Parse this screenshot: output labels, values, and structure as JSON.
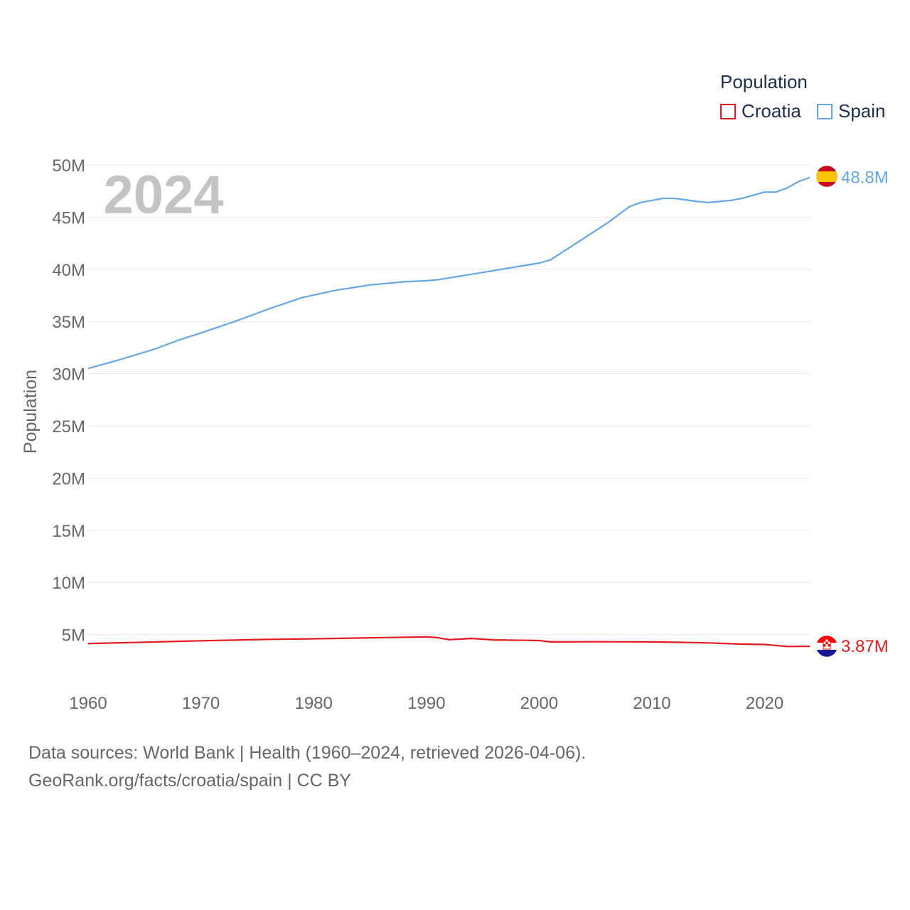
{
  "legend": {
    "title": "Population",
    "items": [
      {
        "name": "Croatia",
        "color": "#e3191c"
      },
      {
        "name": "Spain",
        "color": "#64a6e8"
      }
    ]
  },
  "footer": {
    "line1": "Data sources: World Bank | Health (1960–2024, retrieved 2026-04-06).",
    "line2": "GeoRank.org/facts/croatia/spain | CC BY"
  },
  "chart_data": {
    "type": "line",
    "title": "",
    "year_label": "2024",
    "xlabel": "",
    "ylabel": "Population",
    "xlim": [
      1960,
      2024
    ],
    "ylim": [
      0,
      50000000
    ],
    "x_ticks": [
      1960,
      1970,
      1980,
      1990,
      2000,
      2010,
      2020
    ],
    "x_tick_labels": [
      "1960",
      "1970",
      "1980",
      "1990",
      "2000",
      "2010",
      "2020"
    ],
    "y_ticks": [
      5000000,
      10000000,
      15000000,
      20000000,
      25000000,
      30000000,
      35000000,
      40000000,
      45000000,
      50000000
    ],
    "y_tick_labels": [
      "5M",
      "10M",
      "15M",
      "20M",
      "25M",
      "30M",
      "35M",
      "40M",
      "45M",
      "50M"
    ],
    "grid": true,
    "series": [
      {
        "name": "Spain",
        "color": "#64a6e8",
        "end_label": "48.8M",
        "points": [
          [
            1960,
            30.5
          ],
          [
            1963,
            31.4
          ],
          [
            1966,
            32.4
          ],
          [
            1968,
            33.2
          ],
          [
            1970,
            33.9
          ],
          [
            1973,
            35.0
          ],
          [
            1976,
            36.2
          ],
          [
            1979,
            37.3
          ],
          [
            1982,
            38.0
          ],
          [
            1985,
            38.5
          ],
          [
            1988,
            38.8
          ],
          [
            1990,
            38.9
          ],
          [
            1991,
            39.0
          ],
          [
            1995,
            39.7
          ],
          [
            2000,
            40.6
          ],
          [
            2001,
            40.9
          ],
          [
            2002,
            41.6
          ],
          [
            2004,
            43.0
          ],
          [
            2006,
            44.4
          ],
          [
            2008,
            46.0
          ],
          [
            2009,
            46.4
          ],
          [
            2010,
            46.6
          ],
          [
            2011,
            46.8
          ],
          [
            2012,
            46.8
          ],
          [
            2014,
            46.5
          ],
          [
            2015,
            46.4
          ],
          [
            2016,
            46.5
          ],
          [
            2017,
            46.6
          ],
          [
            2018,
            46.8
          ],
          [
            2019,
            47.1
          ],
          [
            2020,
            47.4
          ],
          [
            2021,
            47.4
          ],
          [
            2022,
            47.8
          ],
          [
            2023,
            48.4
          ],
          [
            2024,
            48.8
          ]
        ]
      },
      {
        "name": "Croatia",
        "color": "#e3191c",
        "end_label": "3.87M",
        "points": [
          [
            1960,
            4.14
          ],
          [
            1965,
            4.27
          ],
          [
            1970,
            4.41
          ],
          [
            1975,
            4.52
          ],
          [
            1980,
            4.6
          ],
          [
            1985,
            4.69
          ],
          [
            1990,
            4.78
          ],
          [
            1991,
            4.71
          ],
          [
            1992,
            4.51
          ],
          [
            1994,
            4.63
          ],
          [
            1996,
            4.49
          ],
          [
            1999,
            4.45
          ],
          [
            2000,
            4.43
          ],
          [
            2001,
            4.3
          ],
          [
            2005,
            4.31
          ],
          [
            2010,
            4.3
          ],
          [
            2013,
            4.25
          ],
          [
            2015,
            4.2
          ],
          [
            2018,
            4.09
          ],
          [
            2020,
            4.05
          ],
          [
            2022,
            3.86
          ],
          [
            2024,
            3.87
          ]
        ]
      }
    ]
  }
}
